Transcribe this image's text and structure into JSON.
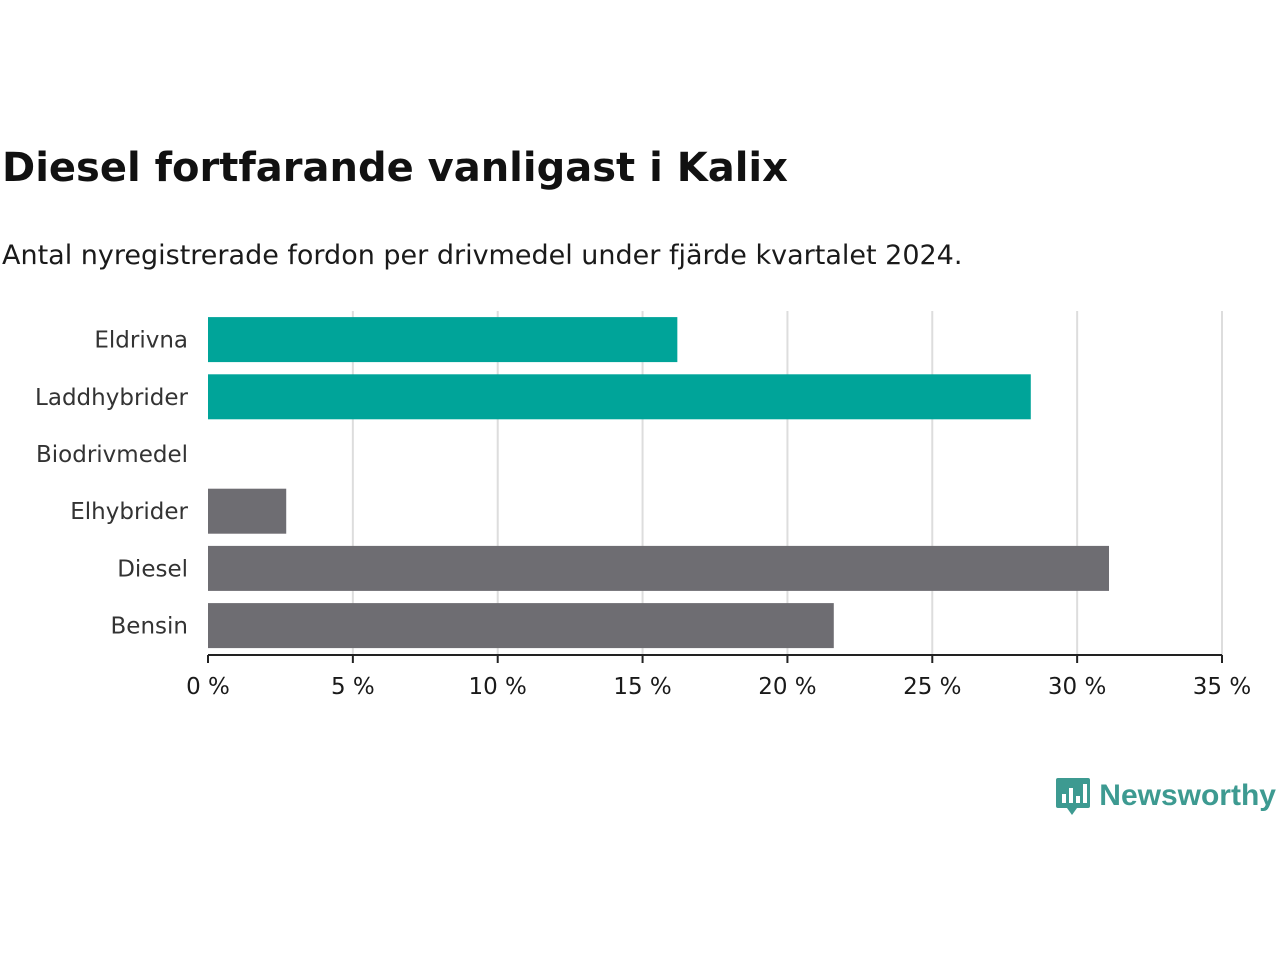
{
  "title": "Diesel fortfarande vanligast i Kalix",
  "subtitle": "Antal nyregistrerade fordon per drivmedel under fjärde kvartalet 2024.",
  "brand": {
    "name": "Newsworthy",
    "icon": "newsworthy-logo-icon",
    "color": "#3d9a91"
  },
  "chart_data": {
    "type": "bar",
    "orientation": "horizontal",
    "categories": [
      "Eldrivna",
      "Laddhybrider",
      "Biodrivmedel",
      "Elhybrider",
      "Diesel",
      "Bensin"
    ],
    "values": [
      16.2,
      28.4,
      0,
      2.7,
      31.1,
      21.6
    ],
    "colors": [
      "#00a499",
      "#00a499",
      "#00a499",
      "#6e6d72",
      "#6e6d72",
      "#6e6d72"
    ],
    "xlim": [
      0,
      35
    ],
    "ticks": [
      0,
      5,
      10,
      15,
      20,
      25,
      30,
      35
    ],
    "tick_labels": [
      "0 %",
      "5 %",
      "10 %",
      "15 %",
      "20 %",
      "25 %",
      "30 %",
      "35 %"
    ],
    "grid": true,
    "gridline_color": "#dddddd",
    "axis_color": "#222222"
  }
}
